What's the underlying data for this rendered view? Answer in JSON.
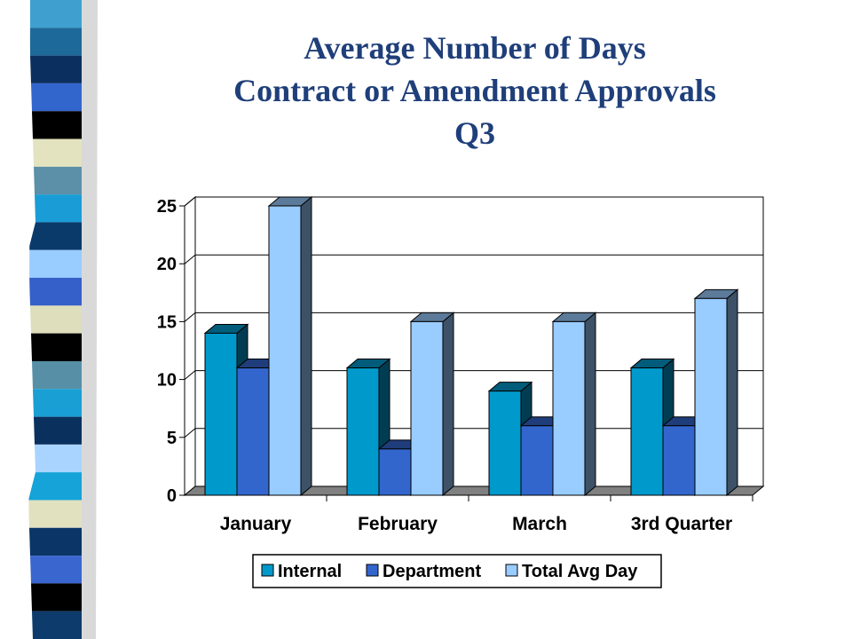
{
  "title_lines": [
    "Average Number of Days",
    "Contract or Amendment Approvals",
    "Q3"
  ],
  "colors": {
    "title": "#1f3f7a",
    "stripes": [
      "#3fa0d0",
      "#1d6a9a",
      "#0b2f5e",
      "#3366cc",
      "#000000",
      "#e3e3c0",
      "#5c8fa8",
      "#1a9dd6",
      "#0a3a6a",
      "#99ccff",
      "#3560c9",
      "#dedebd",
      "#000000",
      "#5790a6",
      "#199fd4",
      "#0a305e",
      "#a8d4ff",
      "#16a3d8",
      "#e1e1c0",
      "#0a3566",
      "#3a66cf",
      "#000000",
      "#0d3b6c"
    ]
  },
  "chart_data": {
    "type": "bar",
    "categories": [
      "January",
      "February",
      "March",
      "3rd Quarter"
    ],
    "series": [
      {
        "name": "Internal",
        "values": [
          14,
          11,
          9,
          11
        ],
        "color": "#0099cc"
      },
      {
        "name": "Department",
        "values": [
          11,
          4,
          6,
          6
        ],
        "color": "#3366cc"
      },
      {
        "name": "Total Avg Day",
        "values": [
          25,
          15,
          15,
          17
        ],
        "color": "#99ccff"
      }
    ],
    "ylim": [
      0,
      25
    ],
    "yticks": [
      "0",
      "5",
      "10",
      "15",
      "20",
      "25"
    ],
    "grid": true,
    "legend": "bottom",
    "style": "3d-clustered"
  }
}
